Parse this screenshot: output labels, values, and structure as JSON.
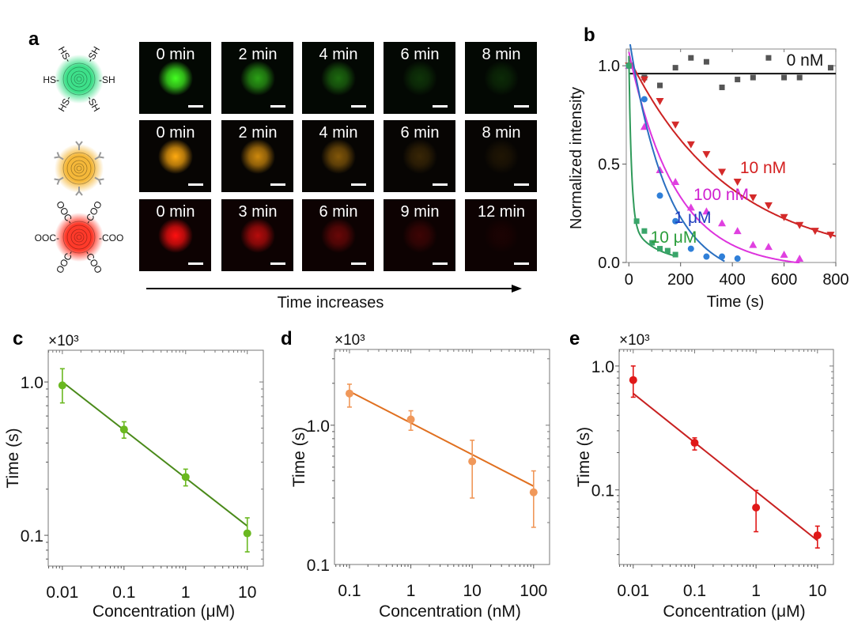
{
  "panel_a": {
    "label": "a",
    "particles": [
      {
        "name": "thiol-particle",
        "color": "#3ee08a",
        "ligand_left": "HS-",
        "ligand_right": "-SH"
      },
      {
        "name": "antibody-particle",
        "color": "#f5b83a"
      },
      {
        "name": "carboxyl-particle",
        "color": "#ff3a2a",
        "ligand_left": "OOC-",
        "ligand_right": "-COO"
      }
    ],
    "rows": [
      {
        "color": "#44ff22",
        "bg": "#030803",
        "tiles": [
          {
            "label": "0 min",
            "intensity": 1.0
          },
          {
            "label": "2 min",
            "intensity": 0.62
          },
          {
            "label": "4 min",
            "intensity": 0.4
          },
          {
            "label": "6 min",
            "intensity": 0.18
          },
          {
            "label": "8 min",
            "intensity": 0.14
          }
        ]
      },
      {
        "color": "#ffaa10",
        "bg": "#070503",
        "tiles": [
          {
            "label": "0 min",
            "intensity": 1.0
          },
          {
            "label": "2 min",
            "intensity": 0.8
          },
          {
            "label": "4 min",
            "intensity": 0.5
          },
          {
            "label": "6 min",
            "intensity": 0.2
          },
          {
            "label": "8 min",
            "intensity": 0.1
          }
        ]
      },
      {
        "color": "#ff1010",
        "bg": "#0d0202",
        "tiles": [
          {
            "label": "0 min",
            "intensity": 1.0
          },
          {
            "label": "3 min",
            "intensity": 0.7
          },
          {
            "label": "6 min",
            "intensity": 0.38
          },
          {
            "label": "9 min",
            "intensity": 0.2
          },
          {
            "label": "12 min",
            "intensity": 0.06
          }
        ]
      }
    ],
    "arrow_label": "Time increases"
  },
  "chart_data": [
    {
      "panel": "b",
      "type": "scatter",
      "xlabel": "Time (s)",
      "ylabel": "Normalized intensity",
      "xlim": [
        -10,
        800
      ],
      "ylim": [
        0,
        1.085
      ],
      "xticks": [
        0,
        200,
        400,
        600,
        800
      ],
      "xtick_labels": [
        "0",
        "200",
        "400",
        "600",
        "800"
      ],
      "yticks": [
        0,
        0.5,
        1.0
      ],
      "ytick_labels": [
        "0.0",
        "0.5",
        "1.0"
      ],
      "series": [
        {
          "name": "0 nM",
          "color": "#555555",
          "marker": "square",
          "x": [
            0,
            60,
            120,
            180,
            240,
            300,
            360,
            420,
            480,
            540,
            600,
            660,
            780
          ],
          "y": [
            1.0,
            0.94,
            0.9,
            0.99,
            1.04,
            1.02,
            0.89,
            0.93,
            0.94,
            1.04,
            0.94,
            0.94,
            0.99
          ],
          "fit": {
            "terms": [],
            "c": 0.96,
            "range": [
              0,
              800
            ]
          },
          "fit_color": "#111111"
        },
        {
          "name": "10 nM",
          "color": "#d42a2a",
          "marker": "triangle-down",
          "x": [
            0,
            60,
            120,
            180,
            240,
            300,
            360,
            420,
            480,
            540,
            600,
            660,
            720,
            780
          ],
          "y": [
            1.0,
            0.93,
            0.82,
            0.7,
            0.6,
            0.55,
            0.46,
            0.41,
            0.33,
            0.29,
            0.23,
            0.19,
            0.16,
            0.14
          ],
          "fit": {
            "terms": [
              [
                1.04,
                390
              ]
            ],
            "c": 0,
            "range": [
              0,
              800
            ]
          },
          "fit_color": "#cc2222"
        },
        {
          "name": "100 nM",
          "color": "#e040e0",
          "marker": "triangle-up",
          "x": [
            0,
            60,
            120,
            180,
            240,
            300,
            360,
            420,
            480,
            540,
            600,
            660
          ],
          "y": [
            1.0,
            0.69,
            0.47,
            0.41,
            0.28,
            0.26,
            0.2,
            0.16,
            0.09,
            0.08,
            0.04,
            0.02
          ],
          "fit": {
            "terms": [
              [
                1.1,
                180
              ]
            ],
            "c": -0.03,
            "range": [
              0,
              660
            ]
          },
          "fit_color": "#dd33dd"
        },
        {
          "name": "1 μM",
          "color": "#2f7fd8",
          "marker": "circle",
          "x": [
            0,
            60,
            120,
            180,
            240,
            300,
            360,
            420
          ],
          "y": [
            1.0,
            0.83,
            0.34,
            0.21,
            0.07,
            0.03,
            0.03,
            0.02
          ],
          "fit": {
            "terms": [
              [
                1.25,
                150
              ]
            ],
            "c": -0.1,
            "range": [
              5,
              370
            ]
          },
          "fit_color": "#2a6fc0"
        },
        {
          "name": "10 μM",
          "color": "#3aa56a",
          "marker": "square",
          "x": [
            0,
            30,
            60,
            90,
            120,
            150,
            180
          ],
          "y": [
            1.0,
            0.21,
            0.16,
            0.1,
            0.07,
            0.06,
            0.04
          ],
          "fit": {
            "terms": [
              [
                0.85,
                10
              ],
              [
                0.2,
                100
              ]
            ],
            "c": 0,
            "range": [
              0,
              180
            ]
          },
          "fit_color": "#2f9a5a"
        }
      ],
      "annotations": [
        {
          "text": "0 nM",
          "color": "#111111"
        },
        {
          "text": "10 nM",
          "color": "#d42020"
        },
        {
          "text": "100 nM",
          "color": "#d020d0"
        },
        {
          "text": "1 μM",
          "color": "#1f3fbf"
        },
        {
          "text": "10 μM",
          "color": "#2a9d3a"
        }
      ]
    },
    {
      "panel": "c",
      "type": "scatter",
      "scale": "log-log",
      "multiplier": "×10³",
      "xlabel": "Concentration (μM)",
      "ylabel": "Time (s)",
      "xlim": [
        0.0059,
        18.2
      ],
      "ylim": [
        0.063,
        1.61
      ],
      "xticks": [
        0.01,
        0.1,
        1,
        10
      ],
      "xtick_labels": [
        "0.01",
        "0.1",
        "1",
        "10"
      ],
      "yticks": [
        0.1,
        1.0
      ],
      "ytick_labels": [
        "0.1",
        "1.0"
      ],
      "color": "#6ab820",
      "line_color": "#4a8a1a",
      "x": [
        0.01,
        0.1,
        1,
        10
      ],
      "y": [
        0.95,
        0.49,
        0.24,
        0.103
      ],
      "err_low": [
        0.73,
        0.43,
        0.21,
        0.078
      ],
      "err_high": [
        1.22,
        0.55,
        0.27,
        0.13
      ],
      "fit": [
        [
          0.01,
          1.0
        ],
        [
          10,
          0.115
        ]
      ]
    },
    {
      "panel": "d",
      "type": "scatter",
      "scale": "log-log",
      "multiplier": "×10³",
      "xlabel": "Concentration (nM)",
      "ylabel": "Time (s)",
      "xlim": [
        0.057,
        182
      ],
      "ylim": [
        0.1,
        3.5
      ],
      "xticks": [
        0.1,
        1,
        10,
        100
      ],
      "xtick_labels": [
        "0.1",
        "1",
        "10",
        "100"
      ],
      "yticks": [
        0.1,
        1.0
      ],
      "ytick_labels": [
        "0.1",
        "1.0"
      ],
      "color": "#f0985a",
      "line_color": "#e07020",
      "x": [
        0.1,
        1,
        10,
        100
      ],
      "y": [
        1.69,
        1.1,
        0.55,
        0.33
      ],
      "err_low": [
        1.35,
        0.92,
        0.3,
        0.185
      ],
      "err_high": [
        1.97,
        1.27,
        0.78,
        0.47
      ],
      "fit": [
        [
          0.1,
          1.75
        ],
        [
          100,
          0.365
        ]
      ]
    },
    {
      "panel": "e",
      "type": "scatter",
      "scale": "log-log",
      "multiplier": "×10³",
      "xlabel": "Concentration (μM)",
      "ylabel": "Time (s)",
      "xlim": [
        0.0059,
        18.2
      ],
      "ylim": [
        0.025,
        1.36
      ],
      "xticks": [
        0.01,
        0.1,
        1,
        10
      ],
      "xtick_labels": [
        "0.01",
        "0.1",
        "1",
        "10"
      ],
      "yticks": [
        0.1,
        1.0
      ],
      "ytick_labels": [
        "0.1",
        "1.0"
      ],
      "color": "#e01818",
      "line_color": "#c82020",
      "x": [
        0.01,
        0.1,
        1,
        10
      ],
      "y": [
        0.77,
        0.24,
        0.072,
        0.043
      ],
      "err_low": [
        0.56,
        0.21,
        0.046,
        0.034
      ],
      "err_high": [
        1.0,
        0.263,
        0.099,
        0.051
      ],
      "fit": [
        [
          0.01,
          0.6
        ],
        [
          10,
          0.039
        ]
      ]
    }
  ]
}
